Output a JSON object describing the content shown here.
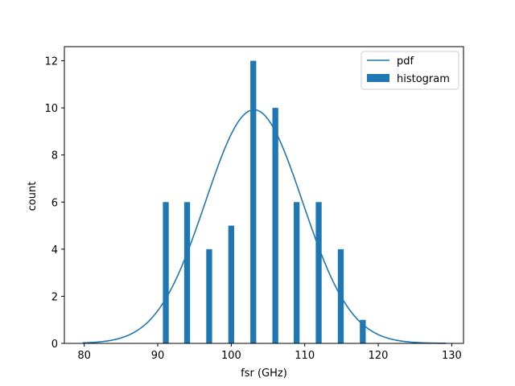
{
  "chart_data": {
    "type": "bar",
    "title": "",
    "xlabel": "fsr (GHz)",
    "ylabel": "count",
    "xlim": [
      77.3,
      131.6
    ],
    "ylim": [
      0,
      12.6
    ],
    "xticks": [
      80,
      90,
      100,
      110,
      120,
      130
    ],
    "yticks": [
      0,
      2,
      4,
      6,
      8,
      10,
      12
    ],
    "grid": false,
    "legend_position": "top-right",
    "colors": {
      "series": "#1f77b4",
      "axes": "#000000",
      "legend_border": "#cccccc"
    },
    "series": [
      {
        "name": "histogram",
        "kind": "bar",
        "x": [
          91.1,
          94.0,
          97.0,
          100.0,
          103.0,
          106.0,
          108.9,
          111.9,
          114.9,
          117.9
        ],
        "values": [
          6,
          6,
          4,
          5,
          12,
          10,
          6,
          6,
          4,
          1
        ],
        "bar_width": 0.8
      },
      {
        "name": "pdf",
        "kind": "line",
        "mean": 103.1,
        "std": 6.6,
        "peak": 9.92,
        "x_range": [
          79.8,
          129.2
        ]
      }
    ],
    "legend": [
      "pdf",
      "histogram"
    ]
  }
}
